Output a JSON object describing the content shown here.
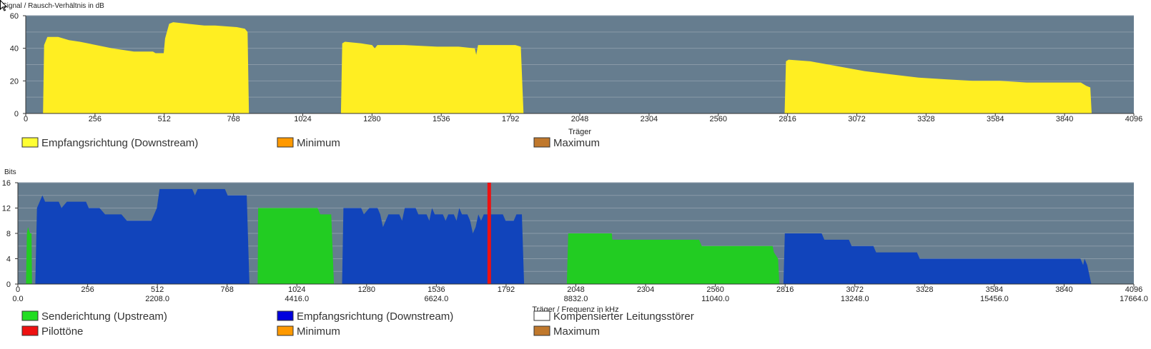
{
  "chart_data": [
    {
      "type": "area",
      "title": "Signal / Rausch-Verhältnis in dB",
      "xlabel": "Träger",
      "xlim": [
        0,
        4096
      ],
      "ylim": [
        0,
        60
      ],
      "x_ticks": [
        "0",
        "256",
        "512",
        "768",
        "1024",
        "1280",
        "1536",
        "1792",
        "2048",
        "2304",
        "2560",
        "2816",
        "3072",
        "3328",
        "3584",
        "3840",
        "4096"
      ],
      "y_ticks": [
        "0",
        "20",
        "40",
        "60"
      ],
      "grid": true,
      "legend": [
        {
          "label": "Empfangsrichtung (Downstream)",
          "color": "#ffff33"
        },
        {
          "label": "Minimum",
          "color": "#ff9900"
        },
        {
          "label": "Maximum",
          "color": "#c0782c"
        }
      ],
      "series": [
        {
          "name": "Empfangsrichtung (Downstream)",
          "color": "#ffee22",
          "segments": [
            [
              [
                64,
                0
              ],
              [
                68,
                42
              ],
              [
                80,
                47
              ],
              [
                120,
                47
              ],
              [
                160,
                45
              ],
              [
                200,
                44
              ],
              [
                260,
                42
              ],
              [
                320,
                40
              ],
              [
                400,
                38
              ],
              [
                470,
                38
              ],
              [
                480,
                37
              ],
              [
                510,
                37
              ],
              [
                515,
                46
              ],
              [
                530,
                55
              ],
              [
                545,
                56
              ],
              [
                600,
                55
              ],
              [
                660,
                54
              ],
              [
                700,
                54
              ],
              [
                780,
                53
              ],
              [
                810,
                52
              ],
              [
                820,
                50
              ],
              [
                825,
                0
              ]
            ],
            [
              [
                1165,
                0
              ],
              [
                1170,
                43
              ],
              [
                1180,
                44
              ],
              [
                1240,
                43
              ],
              [
                1280,
                42
              ],
              [
                1290,
                40
              ],
              [
                1300,
                42
              ],
              [
                1400,
                42
              ],
              [
                1520,
                41
              ],
              [
                1600,
                41
              ],
              [
                1660,
                40
              ],
              [
                1665,
                36
              ],
              [
                1672,
                42
              ],
              [
                1750,
                42
              ],
              [
                1810,
                42
              ],
              [
                1830,
                41
              ],
              [
                1840,
                0
              ]
            ],
            [
              [
                2805,
                0
              ],
              [
                2810,
                32
              ],
              [
                2820,
                33
              ],
              [
                2900,
                32
              ],
              [
                3000,
                29
              ],
              [
                3100,
                26
              ],
              [
                3200,
                24
              ],
              [
                3300,
                22
              ],
              [
                3400,
                21
              ],
              [
                3500,
                20
              ],
              [
                3600,
                20
              ],
              [
                3700,
                19
              ],
              [
                3800,
                19
              ],
              [
                3900,
                19
              ],
              [
                3920,
                17
              ],
              [
                3935,
                16
              ],
              [
                3940,
                0
              ]
            ]
          ]
        }
      ]
    },
    {
      "type": "area",
      "title": "Bits",
      "xlabel": "Träger / Frequenz in kHz",
      "xlim": [
        0,
        4096
      ],
      "ylim": [
        0,
        16
      ],
      "x_ticks": [
        "0",
        "256",
        "512",
        "768",
        "1024",
        "1280",
        "1536",
        "1792",
        "2048",
        "2304",
        "2560",
        "2816",
        "3072",
        "3328",
        "3584",
        "3840",
        "4096"
      ],
      "x_ticks_khz": [
        "0.0",
        "2208.0",
        "4416.0",
        "6624.0",
        "8832.0",
        "11040.0",
        "13248.0",
        "15456.0",
        "17664.0"
      ],
      "y_ticks": [
        "0",
        "4",
        "8",
        "12",
        "16"
      ],
      "grid": true,
      "pilot_tone": 1730,
      "legend": [
        {
          "label": "Senderichtung (Upstream)",
          "color": "#22dd22"
        },
        {
          "label": "Empfangsrichtung (Downstream)",
          "color": "#0000dd"
        },
        {
          "label": "Kompensierter Leitungsstörer",
          "color": "#ffffff"
        },
        {
          "label": "Pilottöne",
          "color": "#ee1111"
        },
        {
          "label": "Minimum",
          "color": "#ff9900"
        },
        {
          "label": "Maximum",
          "color": "#c0782c"
        }
      ],
      "series": [
        {
          "name": "Senderichtung (Upstream)",
          "color": "#22cc22",
          "segments": [
            [
              [
                30,
                0
              ],
              [
                33,
                8
              ],
              [
                37,
                9
              ],
              [
                45,
                8
              ],
              [
                50,
                8
              ],
              [
                52,
                0
              ]
            ],
            [
              [
                880,
                0
              ],
              [
                882,
                12
              ],
              [
                1100,
                12
              ],
              [
                1110,
                11
              ],
              [
                1150,
                11
              ],
              [
                1160,
                0
              ]
            ],
            [
              [
                2015,
                0
              ],
              [
                2020,
                8
              ],
              [
                2180,
                8
              ],
              [
                2182,
                7
              ],
              [
                2500,
                7
              ],
              [
                2510,
                6
              ],
              [
                2770,
                6
              ],
              [
                2775,
                5
              ],
              [
                2790,
                4
              ],
              [
                2795,
                0
              ]
            ]
          ]
        },
        {
          "name": "Empfangsrichtung (Downstream)",
          "color": "#1144bb",
          "segments": [
            [
              [
                64,
                0
              ],
              [
                70,
                12
              ],
              [
                80,
                13
              ],
              [
                90,
                14
              ],
              [
                100,
                13
              ],
              [
                150,
                13
              ],
              [
                160,
                12
              ],
              [
                180,
                13
              ],
              [
                250,
                13
              ],
              [
                260,
                12
              ],
              [
                300,
                12
              ],
              [
                320,
                11
              ],
              [
                380,
                11
              ],
              [
                400,
                10
              ],
              [
                490,
                10
              ],
              [
                500,
                11
              ],
              [
                510,
                12
              ],
              [
                520,
                15
              ],
              [
                600,
                15
              ],
              [
                640,
                15
              ],
              [
                650,
                14
              ],
              [
                660,
                15
              ],
              [
                700,
                15
              ],
              [
                760,
                15
              ],
              [
                770,
                14
              ],
              [
                840,
                14
              ],
              [
                850,
                0
              ]
            ],
            [
              [
                1190,
                0
              ],
              [
                1195,
                12
              ],
              [
                1260,
                12
              ],
              [
                1270,
                11
              ],
              [
                1290,
                12
              ],
              [
                1320,
                12
              ],
              [
                1330,
                11
              ],
              [
                1340,
                9
              ],
              [
                1350,
                10
              ],
              [
                1360,
                11
              ],
              [
                1400,
                11
              ],
              [
                1410,
                10
              ],
              [
                1420,
                12
              ],
              [
                1460,
                12
              ],
              [
                1470,
                11
              ],
              [
                1500,
                11
              ],
              [
                1510,
                10
              ],
              [
                1520,
                12
              ],
              [
                1530,
                11
              ],
              [
                1560,
                11
              ],
              [
                1570,
                10
              ],
              [
                1580,
                11
              ],
              [
                1600,
                11
              ],
              [
                1610,
                10
              ],
              [
                1620,
                12
              ],
              [
                1630,
                11
              ],
              [
                1650,
                11
              ],
              [
                1660,
                10
              ],
              [
                1670,
                8
              ],
              [
                1680,
                9
              ],
              [
                1690,
                11
              ],
              [
                1700,
                10
              ],
              [
                1710,
                11
              ],
              [
                1780,
                11
              ],
              [
                1790,
                10
              ],
              [
                1820,
                10
              ],
              [
                1830,
                11
              ],
              [
                1850,
                11
              ],
              [
                1858,
                0
              ]
            ],
            [
              [
                2810,
                0
              ],
              [
                2815,
                8
              ],
              [
                2950,
                8
              ],
              [
                2960,
                7
              ],
              [
                3050,
                7
              ],
              [
                3060,
                6
              ],
              [
                3140,
                6
              ],
              [
                3150,
                5
              ],
              [
                3300,
                5
              ],
              [
                3310,
                4
              ],
              [
                3500,
                4
              ],
              [
                3800,
                4
              ],
              [
                3900,
                4
              ],
              [
                3910,
                3
              ],
              [
                3915,
                4
              ],
              [
                3925,
                3
              ],
              [
                3940,
                0
              ]
            ]
          ]
        }
      ]
    }
  ]
}
